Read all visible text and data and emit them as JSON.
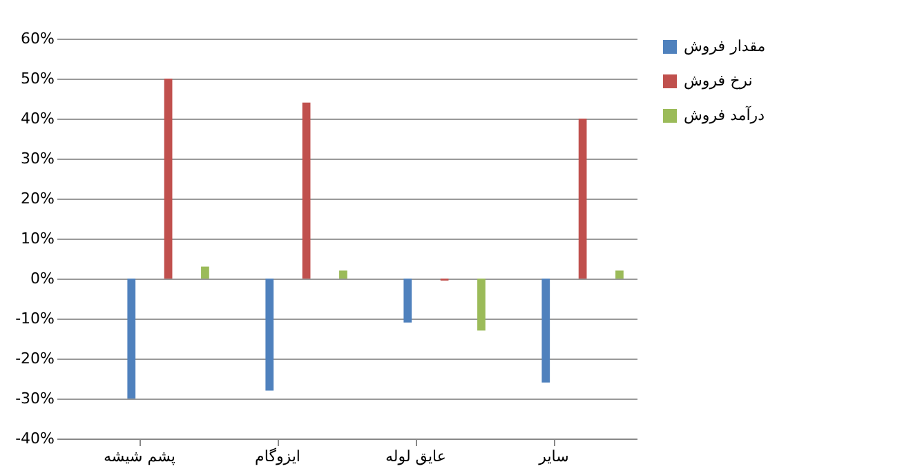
{
  "chart_data": {
    "type": "bar",
    "categories": [
      "پشم شیشه",
      "ایزوگام",
      "عایق لوله",
      "سایر"
    ],
    "series": [
      {
        "name": "مقدار فروش",
        "color": "#4f81bd",
        "values": [
          -30,
          -28,
          -11,
          -26
        ]
      },
      {
        "name": "نرخ فروش",
        "color": "#c0504d",
        "values": [
          50,
          44,
          -0.5,
          40
        ]
      },
      {
        "name": "درآمد فروش",
        "color": "#9bbb59",
        "values": [
          3,
          2,
          -13,
          2
        ]
      }
    ],
    "ylim": [
      -40,
      60
    ],
    "yticks": [
      {
        "value": -40,
        "label": "-40%"
      },
      {
        "value": -30,
        "label": "-30%"
      },
      {
        "value": -20,
        "label": "-20%"
      },
      {
        "value": -10,
        "label": "-10%"
      },
      {
        "value": 0,
        "label": "0%"
      },
      {
        "value": 10,
        "label": "10%"
      },
      {
        "value": 20,
        "label": "20%"
      },
      {
        "value": 30,
        "label": "30%"
      },
      {
        "value": 40,
        "label": "40%"
      },
      {
        "value": 50,
        "label": "50%"
      },
      {
        "value": 60,
        "label": "60%"
      }
    ],
    "grid": "y",
    "legend": "right"
  }
}
